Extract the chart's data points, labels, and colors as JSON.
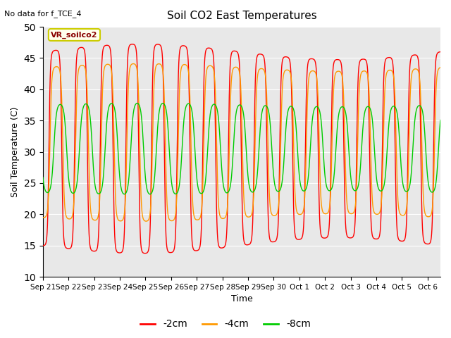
{
  "title": "Soil CO2 East Temperatures",
  "top_left_text": "No data for f_TCE_4",
  "box_label": "VR_soilco2",
  "ylabel": "Soil Temperature (C)",
  "xlabel": "Time",
  "ylim": [
    10,
    50
  ],
  "yticks": [
    10,
    15,
    20,
    25,
    30,
    35,
    40,
    45,
    50
  ],
  "x_tick_labels": [
    "Sep 21",
    "Sep 22",
    "Sep 23",
    "Sep 24",
    "Sep 25",
    "Sep 26",
    "Sep 27",
    "Sep 28",
    "Sep 29",
    "Sep 30",
    "Oct 1",
    "Oct 2",
    "Oct 3",
    "Oct 4",
    "Oct 5",
    "Oct 6"
  ],
  "colors": {
    "red": "#ff0000",
    "orange": "#ff9900",
    "green": "#00cc00",
    "plot_bg": "#e8e8e8",
    "fig_bg": "#ffffff",
    "box_border": "#cccc00",
    "box_bg": "#ffffee"
  },
  "legend_labels": [
    "-2cm",
    "-4cm",
    "-8cm"
  ],
  "num_days": 15.5,
  "period_hours": 24
}
